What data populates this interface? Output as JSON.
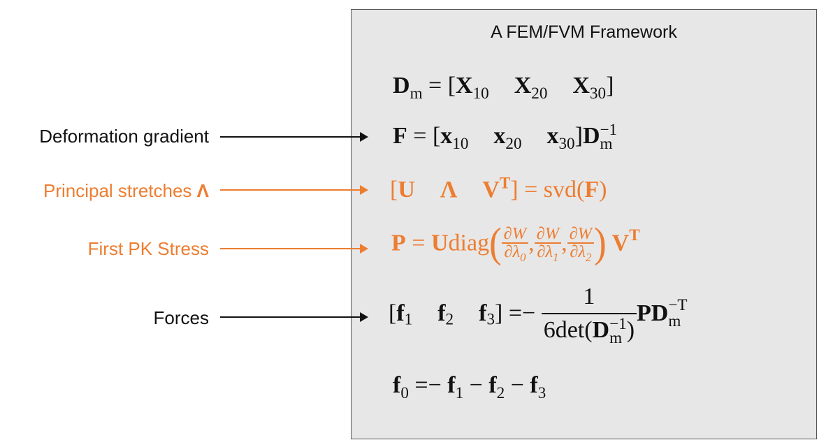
{
  "panel": {
    "title": "A FEM/FVM Framework"
  },
  "labels": {
    "deformation": "Deformation gradient",
    "principal_text": "Principal stretches ",
    "principal_symbol": "Λ",
    "stress": "First PK Stress",
    "forces": "Forces"
  },
  "colors": {
    "black": "#111111",
    "orange": "#ed7d31",
    "panel": "#e7e7e7",
    "border": "#555555"
  },
  "equations": {
    "dm": {
      "lhs": "D",
      "lhs_sub": "m",
      "eq": " = [",
      "c1": "X",
      "c1_sub": "10",
      "c2": "X",
      "c2_sub": "20",
      "c3": "X",
      "c3_sub": "30",
      "close": "]"
    },
    "f": {
      "lhs": "F",
      "eq": " = [",
      "c1": "x",
      "c1_sub": "10",
      "c2": "x",
      "c2_sub": "20",
      "c3": "x",
      "c3_sub": "30",
      "close": "]",
      "d": "D",
      "d_sub": "m",
      "d_sup": "−1"
    },
    "svd": {
      "open": "[",
      "u": "U",
      "lam": "Λ",
      "v": "V",
      "v_sup": "T",
      "close": "]",
      "eq": " = svd(",
      "arg": "F",
      "rparen": ")"
    },
    "p": {
      "lhs": "P",
      "eq": " = ",
      "u": "U",
      "diag": "diag",
      "lparen": "(",
      "rparen": ")",
      "num": "∂W",
      "den0": "∂λ",
      "den0_sub": "0",
      "den1": "∂λ",
      "den1_sub": "1",
      "den2": "∂λ",
      "den2_sub": "2",
      "comma": ",",
      "v": "V",
      "v_sup": "T"
    },
    "forces": {
      "open": "[",
      "f1": "f",
      "f1_sub": "1",
      "f2": "f",
      "f2_sub": "2",
      "f3": "f",
      "f3_sub": "3",
      "close": "]",
      "eq": " =− ",
      "num": "1",
      "den_pre": "6det(",
      "den_d": "D",
      "den_d_sub": "m",
      "den_d_sup": "−1",
      "den_post": ")",
      "pd": "PD",
      "pd_sub": "m",
      "pd_sup": "−T"
    },
    "f0": {
      "f0": "f",
      "f0_sub": "0",
      "eq": " =− ",
      "f1": "f",
      "f1_sub": "1",
      "minus1": " − ",
      "f2": "f",
      "f2_sub": "2",
      "minus2": " − ",
      "f3": "f",
      "f3_sub": "3"
    }
  }
}
